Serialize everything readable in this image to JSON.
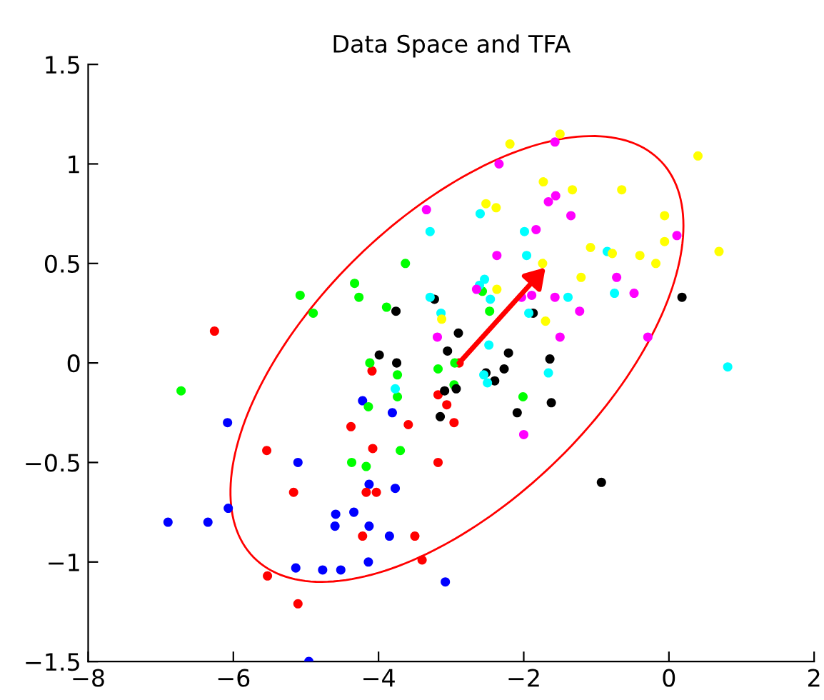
{
  "chart_data": {
    "type": "scatter",
    "title": "Data Space and TFA",
    "xlim": [
      -8,
      2
    ],
    "xticks": [
      -8,
      -6,
      -4,
      -2,
      0,
      2
    ],
    "ylim": [
      -1.5,
      1.5
    ],
    "yticks": [
      -1.5,
      -1,
      -0.5,
      0,
      0.5,
      1,
      1.5
    ],
    "grid": false,
    "legend": false,
    "marker": "circle",
    "series": [
      {
        "color": "#0000ff",
        "x": [
          -6.9,
          -6.35,
          -6.08,
          -6.07,
          -5.11,
          -5.14,
          -4.77,
          -4.52,
          -4.96,
          -4.59,
          -4.6,
          -4.34,
          -4.22,
          -4.13,
          -4.13,
          -4.14,
          -3.81,
          -3.77,
          -3.85,
          -3.08
        ],
        "values": [
          -0.8,
          -0.8,
          -0.3,
          -0.73,
          -0.5,
          -1.03,
          -1.04,
          -1.04,
          -1.5,
          -0.76,
          -0.82,
          -0.75,
          -0.19,
          -0.61,
          -0.82,
          -1.0,
          -0.25,
          -0.63,
          -0.87,
          -1.1
        ]
      },
      {
        "color": "#ff0000",
        "x": [
          -6.26,
          -5.54,
          -4.38,
          -5.17,
          -4.17,
          -4.22,
          -5.53,
          -5.11,
          -4.09,
          -4.08,
          -3.18,
          -3.06,
          -2.96,
          -3.59,
          -3.18,
          -4.03,
          -3.5,
          -3.4,
          -2.89
        ],
        "values": [
          0.16,
          -0.44,
          -0.32,
          -0.65,
          -0.65,
          -0.87,
          -1.07,
          -1.21,
          -0.04,
          -0.43,
          -0.16,
          -0.21,
          -0.3,
          -0.31,
          -0.5,
          -0.65,
          -0.87,
          -0.99,
          0.0
        ]
      },
      {
        "color": "#00ff00",
        "x": [
          -5.08,
          -4.33,
          -4.27,
          -4.9,
          -6.72,
          -4.12,
          -4.14,
          -4.37,
          -4.17,
          -3.63,
          -3.89,
          -3.74,
          -3.74,
          -3.7,
          -3.18,
          -2.95,
          -2.96,
          -2.57,
          -2.47,
          -2.01
        ],
        "values": [
          0.34,
          0.4,
          0.33,
          0.25,
          -0.14,
          0.0,
          -0.22,
          -0.5,
          -0.52,
          0.5,
          0.28,
          -0.06,
          -0.17,
          -0.44,
          -0.03,
          0.0,
          -0.11,
          0.36,
          0.26,
          -0.17
        ]
      },
      {
        "color": "#000000",
        "x": [
          -3.76,
          -3.23,
          -2.9,
          -3.99,
          -3.75,
          -3.05,
          -2.21,
          -2.27,
          -1.64,
          -1.87,
          -3.09,
          -2.93,
          -3.15,
          -2.52,
          -2.4,
          -2.09,
          -1.62,
          0.18,
          -0.93
        ],
        "values": [
          0.26,
          0.32,
          0.15,
          0.04,
          0.0,
          0.06,
          0.05,
          -0.03,
          0.02,
          0.25,
          -0.14,
          -0.13,
          -0.27,
          -0.05,
          -0.09,
          -0.25,
          -0.2,
          0.33,
          -0.6
        ]
      },
      {
        "color": "#00ffff",
        "x": [
          -2.6,
          -3.29,
          -1.99,
          -1.96,
          -3.29,
          -3.14,
          -2.54,
          -2.61,
          -2.46,
          -1.39,
          -1.93,
          -2.48,
          -2.55,
          -2.5,
          -1.66,
          -3.77,
          -0.85,
          -0.75,
          0.81
        ],
        "values": [
          0.75,
          0.66,
          0.66,
          0.54,
          0.33,
          0.25,
          0.42,
          0.39,
          0.32,
          0.33,
          0.25,
          0.09,
          -0.06,
          -0.1,
          -0.05,
          -0.13,
          0.56,
          0.35,
          -0.02
        ]
      },
      {
        "color": "#ff00ff",
        "x": [
          -3.34,
          -2.34,
          -1.57,
          -1.66,
          -1.56,
          -1.35,
          -1.83,
          0.11,
          -2.37,
          -0.72,
          -0.48,
          -2.03,
          -1.89,
          -1.57,
          -1.23,
          -2.65,
          -3.19,
          -1.5,
          -0.29,
          -2.0
        ],
        "values": [
          0.77,
          1.0,
          1.11,
          0.81,
          0.84,
          0.74,
          0.67,
          0.64,
          0.54,
          0.43,
          0.35,
          0.33,
          0.34,
          0.33,
          0.26,
          0.37,
          0.13,
          0.13,
          0.13,
          -0.36
        ]
      },
      {
        "color": "#ffff00",
        "x": [
          -1.5,
          -2.19,
          0.4,
          -1.73,
          -1.33,
          -0.65,
          -2.52,
          -2.38,
          -0.06,
          -0.06,
          -1.08,
          -0.78,
          -0.4,
          -0.18,
          0.69,
          -1.74,
          -1.21,
          -2.37,
          -3.13,
          -1.7
        ],
        "values": [
          1.15,
          1.1,
          1.04,
          0.91,
          0.87,
          0.87,
          0.8,
          0.78,
          0.74,
          0.61,
          0.58,
          0.55,
          0.54,
          0.5,
          0.56,
          0.5,
          0.43,
          0.37,
          0.22,
          0.21
        ]
      }
    ]
  }
}
